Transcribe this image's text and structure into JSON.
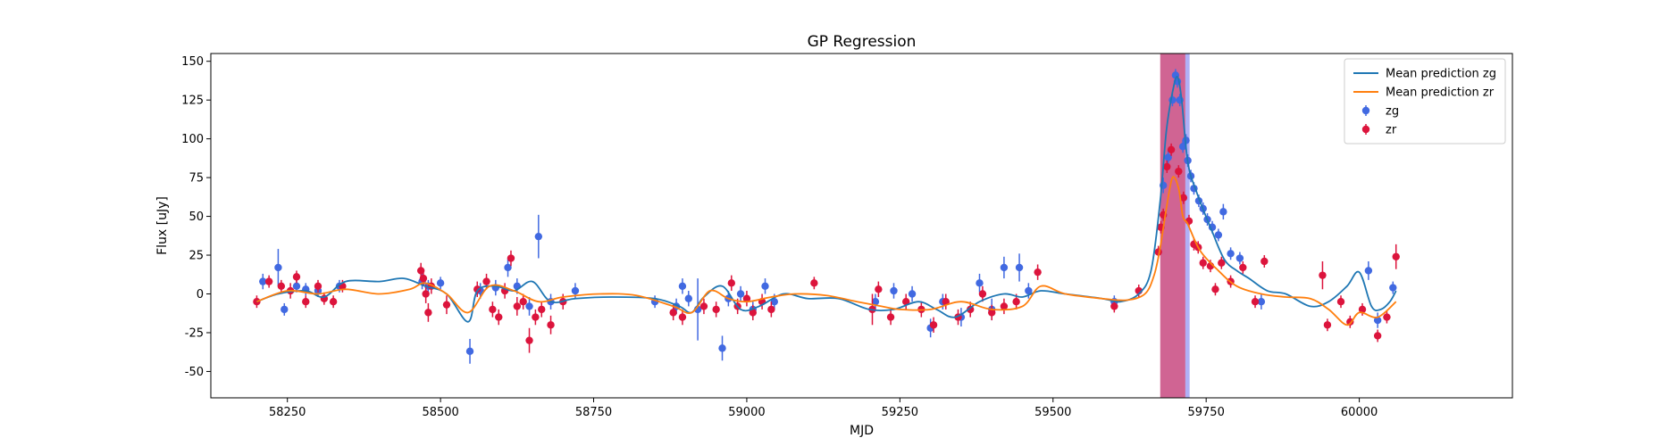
{
  "chart_data": {
    "type": "scatter",
    "title": "GP Regression",
    "xlabel": "MJD",
    "ylabel": "Flux [uJy]",
    "xlim": [
      58125,
      60250
    ],
    "ylim": [
      -67,
      155
    ],
    "xticks": [
      58250,
      58500,
      58750,
      59000,
      59250,
      59500,
      59750,
      60000
    ],
    "yticks": [
      -50,
      -25,
      0,
      25,
      50,
      75,
      100,
      125,
      150
    ],
    "grid": false,
    "legend_position": "top-right",
    "shaded_regions": [
      {
        "x": [
          59675,
          59716
        ],
        "color": "#c0306f",
        "opacity": 0.75
      },
      {
        "x": [
          59716,
          59723
        ],
        "color": "#3a3ae8",
        "opacity": 0.4
      }
    ],
    "series": [
      {
        "name": "Mean prediction zg",
        "kind": "line",
        "color": "#1f77b4",
        "x": [
          58200,
          58235,
          58280,
          58310,
          58345,
          58400,
          58440,
          58475,
          58510,
          58545,
          58560,
          58590,
          58620,
          58650,
          58680,
          58720,
          58780,
          58850,
          58890,
          58910,
          58930,
          58960,
          58990,
          59020,
          59060,
          59100,
          59150,
          59200,
          59240,
          59280,
          59310,
          59340,
          59380,
          59420,
          59450,
          59480,
          59520,
          59580,
          59610,
          59640,
          59660,
          59675,
          59685,
          59695,
          59703,
          59710,
          59720,
          59735,
          59760,
          59780,
          59800,
          59820,
          59850,
          59880,
          59920,
          59950,
          59980,
          60000,
          60020,
          60035,
          60050,
          60060
        ],
        "y": [
          -5,
          0,
          2,
          -2,
          8,
          8,
          10,
          5,
          0,
          -18,
          2,
          5,
          2,
          8,
          -5,
          -3,
          -2,
          -3,
          -8,
          -12,
          -2,
          5,
          -10,
          -8,
          0,
          -3,
          -3,
          -10,
          -10,
          -5,
          -10,
          -15,
          -5,
          0,
          -2,
          2,
          0,
          -3,
          -5,
          0,
          15,
          60,
          105,
          130,
          140,
          125,
          85,
          65,
          40,
          22,
          15,
          10,
          2,
          0,
          -8,
          -5,
          5,
          14,
          -8,
          -10,
          -5,
          2
        ]
      },
      {
        "name": "Mean prediction zr",
        "kind": "line",
        "color": "#ff7f0e",
        "x": [
          58200,
          58250,
          58300,
          58345,
          58400,
          58450,
          58475,
          58510,
          58545,
          58580,
          58620,
          58660,
          58700,
          58760,
          58820,
          58880,
          58910,
          58940,
          58970,
          59000,
          59040,
          59080,
          59130,
          59180,
          59220,
          59250,
          59300,
          59350,
          59400,
          59450,
          59480,
          59520,
          59580,
          59620,
          59650,
          59665,
          59675,
          59685,
          59695,
          59705,
          59712,
          59720,
          59740,
          59770,
          59800,
          59840,
          59880,
          59920,
          59950,
          59980,
          60000,
          60030,
          60060
        ],
        "y": [
          -5,
          2,
          0,
          3,
          0,
          3,
          7,
          0,
          -12,
          5,
          2,
          -5,
          -2,
          0,
          -1,
          -8,
          -12,
          2,
          -3,
          -5,
          -2,
          0,
          -1,
          -5,
          -8,
          -10,
          -10,
          -5,
          -10,
          -8,
          5,
          0,
          -3,
          -4,
          0,
          12,
          30,
          55,
          75,
          68,
          50,
          45,
          28,
          15,
          5,
          0,
          -2,
          -3,
          -10,
          -20,
          -12,
          -15,
          -5
        ]
      },
      {
        "name": "zg",
        "kind": "errorbar",
        "color": "#4169e1",
        "x": [
          58210,
          58235,
          58245,
          58265,
          58280,
          58300,
          58335,
          58470,
          58480,
          58500,
          58548,
          58565,
          58590,
          58610,
          58625,
          58645,
          58660,
          58680,
          58720,
          58850,
          58885,
          58895,
          58905,
          58920,
          58960,
          58970,
          58990,
          59010,
          59030,
          59045,
          59210,
          59240,
          59270,
          59300,
          59320,
          59350,
          59380,
          59400,
          59420,
          59445,
          59460,
          59600,
          59680,
          59688,
          59695,
          59700,
          59703,
          59707,
          59712,
          59717,
          59720,
          59725,
          59730,
          59738,
          59745,
          59752,
          59760,
          59770,
          59778,
          59790,
          59805,
          59840,
          60015,
          60030,
          60055
        ],
        "y": [
          8,
          17,
          -10,
          5,
          3,
          2,
          5,
          8,
          5,
          7,
          -37,
          2,
          4,
          17,
          5,
          -8,
          37,
          -5,
          2,
          -5,
          -8,
          5,
          -3,
          -10,
          -35,
          -3,
          0,
          -10,
          5,
          -5,
          -5,
          2,
          0,
          -22,
          -5,
          -15,
          7,
          -10,
          17,
          17,
          2,
          -5,
          70,
          88,
          125,
          141,
          137,
          125,
          95,
          99,
          86,
          76,
          68,
          60,
          55,
          48,
          43,
          38,
          53,
          26,
          23,
          -5,
          15,
          -17,
          4
        ],
        "yerr": [
          5,
          12,
          4,
          4,
          4,
          4,
          4,
          5,
          4,
          4,
          8,
          5,
          5,
          6,
          5,
          6,
          14,
          5,
          5,
          4,
          5,
          5,
          5,
          20,
          8,
          5,
          5,
          5,
          5,
          5,
          5,
          5,
          5,
          6,
          5,
          6,
          6,
          7,
          7,
          9,
          5,
          4,
          5,
          5,
          4,
          4,
          4,
          4,
          4,
          4,
          4,
          4,
          4,
          4,
          4,
          4,
          4,
          4,
          5,
          4,
          4,
          5,
          6,
          5,
          4
        ]
      },
      {
        "name": "zr",
        "kind": "errorbar",
        "color": "#dc143c",
        "x": [
          58200,
          58220,
          58240,
          58255,
          58265,
          58280,
          58300,
          58310,
          58325,
          58340,
          58468,
          58472,
          58476,
          58480,
          58485,
          58510,
          58560,
          58575,
          58585,
          58595,
          58605,
          58615,
          58625,
          58635,
          58645,
          58655,
          58665,
          58680,
          58700,
          58880,
          58895,
          58930,
          58950,
          58975,
          58985,
          59000,
          59010,
          59025,
          59040,
          59110,
          59205,
          59215,
          59235,
          59260,
          59285,
          59305,
          59325,
          59345,
          59365,
          59385,
          59400,
          59420,
          59440,
          59475,
          59600,
          59640,
          59672,
          59676,
          59680,
          59686,
          59693,
          59705,
          59713,
          59722,
          59730,
          59737,
          59745,
          59757,
          59765,
          59775,
          59790,
          59810,
          59830,
          59845,
          59940,
          59948,
          59970,
          59985,
          60005,
          60030,
          60045,
          60060
        ],
        "y": [
          -5,
          8,
          5,
          2,
          11,
          -5,
          5,
          -3,
          -5,
          5,
          15,
          10,
          0,
          -12,
          5,
          -7,
          3,
          8,
          -10,
          -15,
          2,
          23,
          -8,
          -5,
          -30,
          -15,
          -10,
          -20,
          -5,
          -12,
          -15,
          -8,
          -10,
          7,
          -8,
          -3,
          -12,
          -5,
          -10,
          7,
          -10,
          3,
          -15,
          -5,
          -10,
          -20,
          -5,
          -15,
          -10,
          0,
          -12,
          -8,
          -5,
          14,
          -8,
          2,
          27,
          43,
          51,
          82,
          93,
          79,
          62,
          47,
          32,
          30,
          20,
          18,
          3,
          20,
          8,
          17,
          -5,
          21,
          12,
          -20,
          -5,
          -18,
          -10,
          -27,
          -15,
          24
        ],
        "yerr": [
          4,
          4,
          4,
          5,
          4,
          4,
          4,
          4,
          4,
          4,
          5,
          5,
          6,
          6,
          5,
          6,
          5,
          5,
          5,
          5,
          5,
          5,
          6,
          5,
          8,
          5,
          5,
          6,
          5,
          5,
          5,
          5,
          5,
          5,
          5,
          5,
          5,
          5,
          5,
          4,
          10,
          5,
          5,
          5,
          5,
          5,
          5,
          5,
          5,
          5,
          5,
          5,
          5,
          5,
          4,
          4,
          4,
          4,
          4,
          4,
          4,
          4,
          4,
          4,
          4,
          4,
          4,
          4,
          4,
          4,
          4,
          4,
          4,
          4,
          9,
          4,
          4,
          4,
          4,
          4,
          4,
          8
        ]
      }
    ]
  }
}
